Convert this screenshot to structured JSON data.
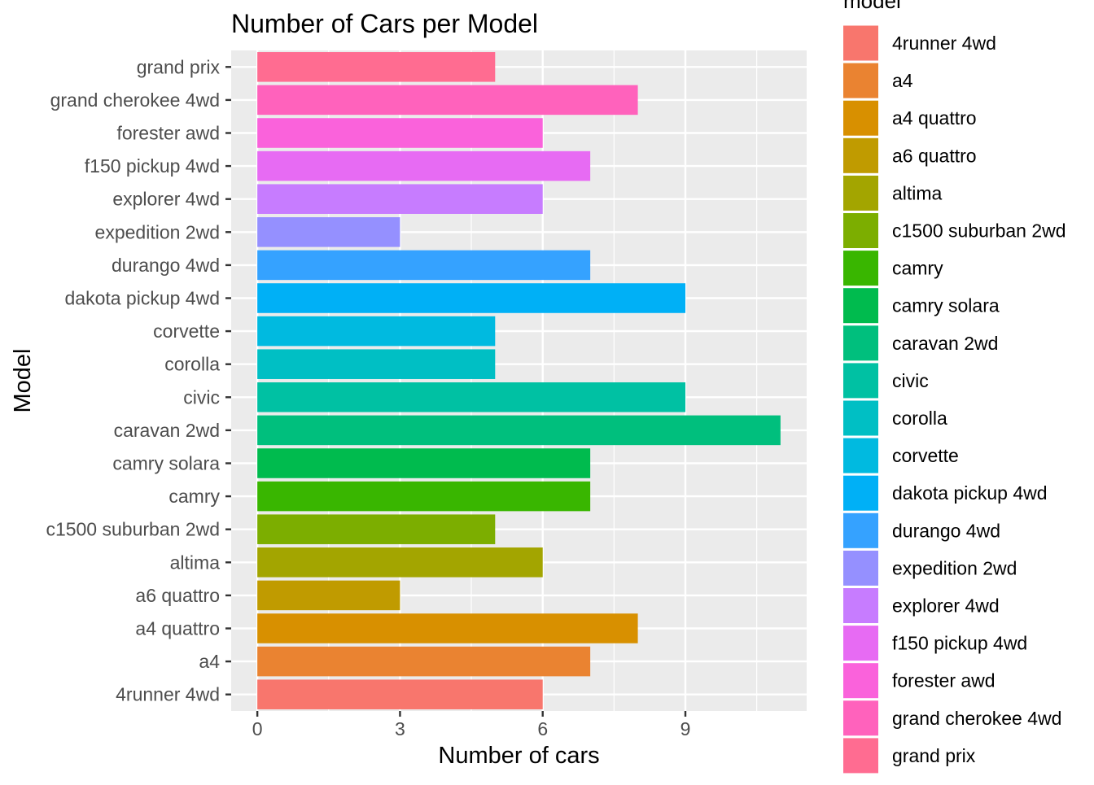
{
  "chart_data": {
    "type": "bar",
    "orientation": "horizontal",
    "title": "Number of Cars per Model",
    "xlabel": "Number of cars",
    "ylabel": "Model",
    "legend_title": "model",
    "legend_position": "right",
    "grid": true,
    "xlim": [
      -0.55,
      11.55
    ],
    "xticks": [
      0,
      3,
      6,
      9
    ],
    "categories": [
      "4runner 4wd",
      "a4",
      "a4 quattro",
      "a6 quattro",
      "altima",
      "c1500 suburban 2wd",
      "camry",
      "camry solara",
      "caravan 2wd",
      "civic",
      "corolla",
      "corvette",
      "dakota pickup 4wd",
      "durango 4wd",
      "expedition 2wd",
      "explorer 4wd",
      "f150 pickup 4wd",
      "forester awd",
      "grand cherokee 4wd",
      "grand prix"
    ],
    "values": [
      6,
      7,
      8,
      3,
      6,
      5,
      7,
      7,
      11,
      9,
      5,
      5,
      9,
      7,
      3,
      6,
      7,
      6,
      8,
      5
    ],
    "colors": [
      "#F8766D",
      "#EA8331",
      "#D89000",
      "#C09B00",
      "#A3A500",
      "#7CAE00",
      "#39B600",
      "#00BB4E",
      "#00BF7D",
      "#00C1A3",
      "#00BFC4",
      "#00BAE0",
      "#00B0F6",
      "#35A2FF",
      "#9590FF",
      "#C77CFF",
      "#E76BF3",
      "#FA62DB",
      "#FF62BC",
      "#FF6C91"
    ]
  }
}
